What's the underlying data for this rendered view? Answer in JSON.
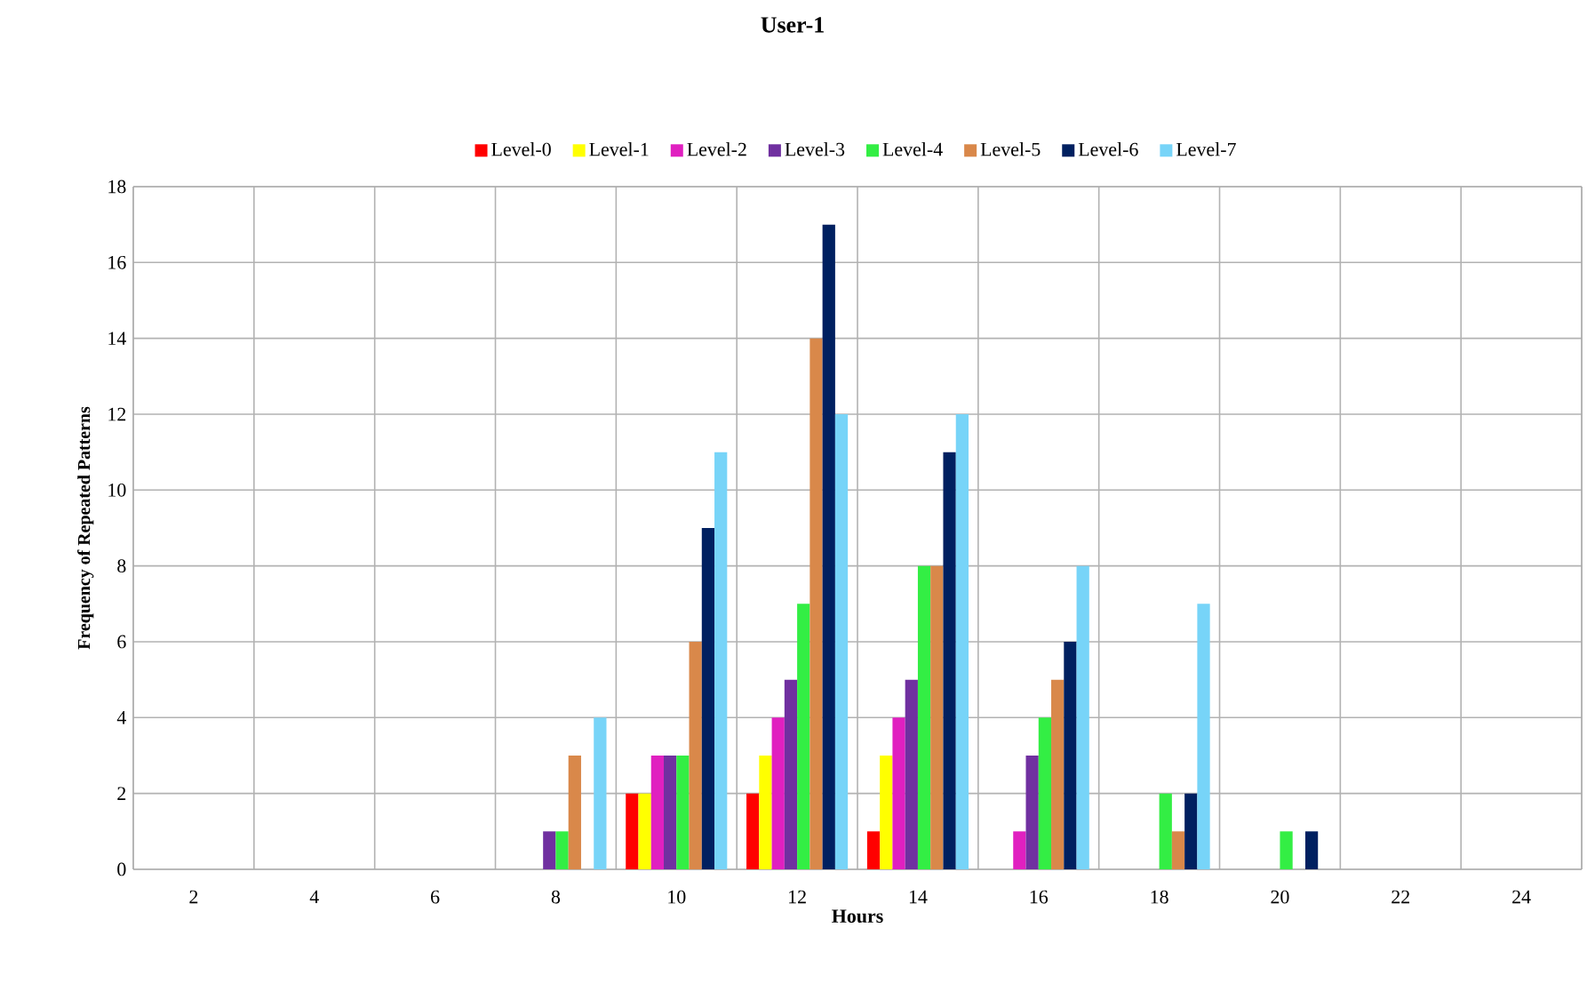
{
  "chart_data": {
    "type": "bar",
    "title": "User-1",
    "xlabel": "Hours",
    "ylabel": "Frequency of Repeated Patterns",
    "categories": [
      "2",
      "4",
      "6",
      "8",
      "10",
      "12",
      "14",
      "16",
      "18",
      "20",
      "22",
      "24"
    ],
    "series": [
      {
        "name": "Level-0",
        "color": "#ff0000",
        "values": [
          0,
          0,
          0,
          0,
          2,
          2,
          1,
          0,
          0,
          0,
          0,
          0
        ]
      },
      {
        "name": "Level-1",
        "color": "#ffff00",
        "values": [
          0,
          0,
          0,
          0,
          2,
          3,
          3,
          0,
          0,
          0,
          0,
          0
        ]
      },
      {
        "name": "Level-2",
        "color": "#e020c0",
        "values": [
          0,
          0,
          0,
          0,
          3,
          4,
          4,
          1,
          0,
          0,
          0,
          0
        ]
      },
      {
        "name": "Level-3",
        "color": "#7030a0",
        "values": [
          0,
          0,
          0,
          1,
          3,
          5,
          5,
          3,
          0,
          0,
          0,
          0
        ]
      },
      {
        "name": "Level-4",
        "color": "#33ee44",
        "values": [
          0,
          0,
          0,
          1,
          3,
          7,
          8,
          4,
          2,
          1,
          0,
          0
        ]
      },
      {
        "name": "Level-5",
        "color": "#d9884a",
        "values": [
          0,
          0,
          0,
          3,
          6,
          14,
          8,
          5,
          1,
          0,
          0,
          0
        ]
      },
      {
        "name": "Level-6",
        "color": "#002060",
        "values": [
          0,
          0,
          0,
          0,
          9,
          17,
          11,
          6,
          2,
          1,
          0,
          0
        ]
      },
      {
        "name": "Level-7",
        "color": "#77d4f8",
        "values": [
          0,
          0,
          0,
          4,
          11,
          12,
          12,
          8,
          7,
          0,
          0,
          0
        ]
      }
    ],
    "ylim": [
      0,
      18
    ],
    "yticks": [
      0,
      2,
      4,
      6,
      8,
      10,
      12,
      14,
      16,
      18
    ],
    "grid": true,
    "legend": "top"
  }
}
